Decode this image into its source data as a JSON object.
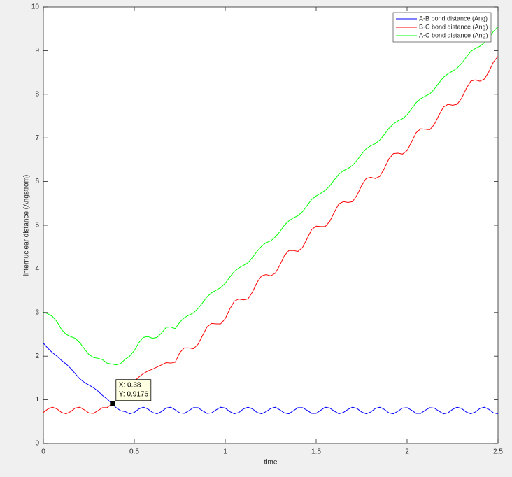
{
  "chart_data": {
    "type": "line",
    "x": [
      0,
      0.025,
      0.05,
      0.075,
      0.1,
      0.125,
      0.15,
      0.175,
      0.2,
      0.225,
      0.25,
      0.275,
      0.3,
      0.325,
      0.35,
      0.375,
      0.4,
      0.425,
      0.45,
      0.475,
      0.5,
      0.525,
      0.55,
      0.575,
      0.6,
      0.625,
      0.65,
      0.675,
      0.7,
      0.725,
      0.75,
      0.775,
      0.8,
      0.825,
      0.85,
      0.875,
      0.9,
      0.925,
      0.95,
      0.975,
      1,
      1.025,
      1.05,
      1.075,
      1.1,
      1.125,
      1.15,
      1.175,
      1.2,
      1.225,
      1.25,
      1.275,
      1.3,
      1.325,
      1.35,
      1.375,
      1.4,
      1.425,
      1.45,
      1.475,
      1.5,
      1.525,
      1.55,
      1.575,
      1.6,
      1.625,
      1.65,
      1.675,
      1.7,
      1.725,
      1.75,
      1.775,
      1.8,
      1.825,
      1.85,
      1.875,
      1.9,
      1.925,
      1.95,
      1.975,
      2,
      2.025,
      2.05,
      2.075,
      2.1,
      2.125,
      2.15,
      2.175,
      2.2,
      2.225,
      2.25,
      2.275,
      2.3,
      2.325,
      2.35,
      2.375,
      2.4,
      2.425,
      2.45,
      2.475,
      2.5
    ],
    "series": [
      {
        "name": "A-B bond distance (Ang)",
        "color": "#0000ff",
        "values": [
          2.3,
          2.18,
          2.08,
          2.0,
          1.9,
          1.82,
          1.72,
          1.6,
          1.48,
          1.4,
          1.34,
          1.28,
          1.2,
          1.1,
          1.02,
          0.92,
          0.82,
          0.75,
          0.73,
          0.68,
          0.71,
          0.79,
          0.83,
          0.79,
          0.71,
          0.68,
          0.73,
          0.81,
          0.83,
          0.77,
          0.7,
          0.69,
          0.75,
          0.82,
          0.82,
          0.75,
          0.69,
          0.7,
          0.77,
          0.83,
          0.81,
          0.73,
          0.68,
          0.71,
          0.79,
          0.83,
          0.79,
          0.71,
          0.68,
          0.73,
          0.8,
          0.83,
          0.77,
          0.7,
          0.68,
          0.75,
          0.82,
          0.82,
          0.76,
          0.69,
          0.69,
          0.76,
          0.83,
          0.81,
          0.74,
          0.68,
          0.71,
          0.78,
          0.83,
          0.8,
          0.72,
          0.68,
          0.72,
          0.8,
          0.83,
          0.78,
          0.7,
          0.68,
          0.74,
          0.81,
          0.82,
          0.76,
          0.69,
          0.69,
          0.76,
          0.82,
          0.81,
          0.74,
          0.68,
          0.7,
          0.78,
          0.83,
          0.8,
          0.72,
          0.68,
          0.72,
          0.8,
          0.83,
          0.78,
          0.7,
          0.68
        ]
      },
      {
        "name": "B-C bond distance (Ang)",
        "color": "#ff0000",
        "values": [
          0.71,
          0.79,
          0.83,
          0.79,
          0.71,
          0.68,
          0.73,
          0.81,
          0.83,
          0.77,
          0.7,
          0.69,
          0.75,
          0.82,
          0.82,
          0.9,
          0.98,
          1.08,
          1.2,
          1.32,
          1.42,
          1.52,
          1.6,
          1.66,
          1.7,
          1.75,
          1.8,
          1.85,
          1.84,
          1.86,
          2.08,
          2.19,
          2.19,
          2.17,
          2.27,
          2.47,
          2.67,
          2.75,
          2.74,
          2.74,
          2.86,
          3.08,
          3.26,
          3.31,
          3.29,
          3.31,
          3.47,
          3.69,
          3.84,
          3.87,
          3.84,
          3.9,
          4.08,
          4.3,
          4.42,
          4.42,
          4.4,
          4.49,
          4.69,
          4.9,
          4.98,
          4.97,
          4.97,
          5.09,
          5.3,
          5.49,
          5.54,
          5.52,
          5.54,
          5.69,
          5.91,
          6.07,
          6.1,
          6.07,
          6.12,
          6.3,
          6.52,
          6.64,
          6.65,
          6.63,
          6.71,
          6.91,
          7.12,
          7.21,
          7.2,
          7.19,
          7.31,
          7.52,
          7.71,
          7.77,
          7.75,
          7.77,
          7.91,
          8.13,
          8.3,
          8.33,
          8.3,
          8.35,
          8.52,
          8.74,
          8.87
        ]
      },
      {
        "name": "A-C bond distance (Ang)",
        "color": "#00ff00",
        "values": [
          3.01,
          2.97,
          2.91,
          2.79,
          2.61,
          2.5,
          2.45,
          2.41,
          2.31,
          2.17,
          2.04,
          1.97,
          1.95,
          1.92,
          1.84,
          1.82,
          1.8,
          1.83,
          1.93,
          2.0,
          2.13,
          2.31,
          2.43,
          2.45,
          2.41,
          2.43,
          2.53,
          2.66,
          2.67,
          2.63,
          2.78,
          2.88,
          2.94,
          2.99,
          3.09,
          3.22,
          3.36,
          3.45,
          3.51,
          3.57,
          3.67,
          3.81,
          3.94,
          4.02,
          4.08,
          4.14,
          4.26,
          4.4,
          4.52,
          4.6,
          4.64,
          4.73,
          4.85,
          5.0,
          5.1,
          5.17,
          5.22,
          5.31,
          5.45,
          5.59,
          5.67,
          5.73,
          5.8,
          5.9,
          6.04,
          6.17,
          6.25,
          6.3,
          6.37,
          6.49,
          6.63,
          6.75,
          6.82,
          6.87,
          6.95,
          7.08,
          7.22,
          7.32,
          7.39,
          7.44,
          7.53,
          7.67,
          7.81,
          7.9,
          7.96,
          8.01,
          8.12,
          8.26,
          8.39,
          8.47,
          8.53,
          8.6,
          8.71,
          8.85,
          8.98,
          9.05,
          9.1,
          9.18,
          9.3,
          9.44,
          9.55
        ]
      }
    ],
    "xlabel": "time",
    "ylabel": "internuclear distance (Angstrom)",
    "xlim": [
      0,
      2.5
    ],
    "xticks": [
      0,
      0.5,
      1,
      1.5,
      2,
      2.5
    ],
    "ylim": [
      0,
      10
    ],
    "yticks": [
      0,
      1,
      2,
      3,
      4,
      5,
      6,
      7,
      8,
      9,
      10
    ],
    "legend": "northeast",
    "datatip": {
      "x": 0.38,
      "y": 0.9176,
      "labels": [
        "X: 0.38",
        "Y: 0.9176"
      ]
    }
  }
}
